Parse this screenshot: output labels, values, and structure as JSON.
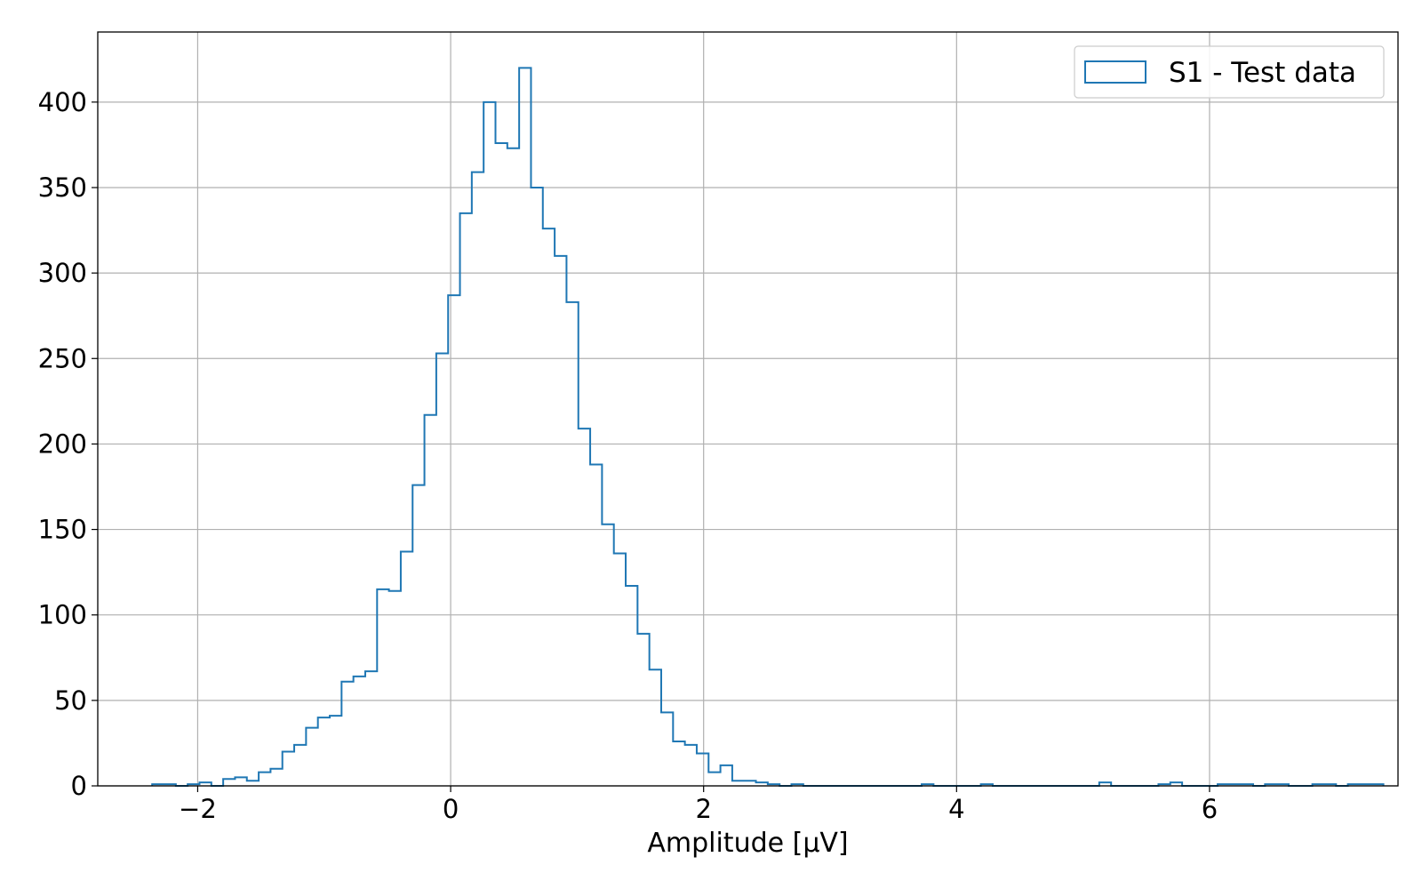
{
  "chart_data": {
    "type": "histogram",
    "title": "",
    "xlabel": "Amplitude [μV]",
    "ylabel": "",
    "xlim": [
      -2.79,
      7.49
    ],
    "ylim": [
      0,
      441
    ],
    "x_ticks": [
      -2,
      0,
      2,
      4,
      6
    ],
    "x_tick_labels": [
      "−2",
      "0",
      "2",
      "4",
      "6"
    ],
    "y_ticks": [
      0,
      50,
      100,
      150,
      200,
      250,
      300,
      350,
      400
    ],
    "y_tick_labels": [
      "0",
      "50",
      "100",
      "150",
      "200",
      "250",
      "300",
      "350",
      "400"
    ],
    "grid": true,
    "legend": {
      "placement": "top-right",
      "entries": [
        "S1 - Test data"
      ]
    },
    "series": [
      {
        "name": "S1 - Test data",
        "color": "#1f77b4",
        "bin_start": -2.36,
        "bin_width": 0.0936,
        "counts": [
          1,
          1,
          0,
          1,
          2,
          0,
          4,
          5,
          3,
          8,
          10,
          20,
          24,
          34,
          40,
          41,
          61,
          64,
          67,
          115,
          114,
          137,
          176,
          217,
          253,
          287,
          335,
          359,
          400,
          376,
          373,
          420,
          350,
          326,
          310,
          283,
          209,
          188,
          153,
          136,
          117,
          89,
          68,
          43,
          26,
          24,
          19,
          8,
          12,
          3,
          3,
          2,
          1,
          0,
          1,
          0,
          0,
          0,
          0,
          0,
          0,
          0,
          0,
          0,
          0,
          1,
          0,
          0,
          0,
          0,
          1,
          0,
          0,
          0,
          0,
          0,
          0,
          0,
          0,
          0,
          2,
          0,
          0,
          0,
          0,
          1,
          2,
          0,
          0,
          0,
          1,
          1,
          1,
          0,
          1,
          1,
          0,
          0,
          1,
          1,
          0,
          1,
          1,
          1
        ]
      }
    ]
  }
}
